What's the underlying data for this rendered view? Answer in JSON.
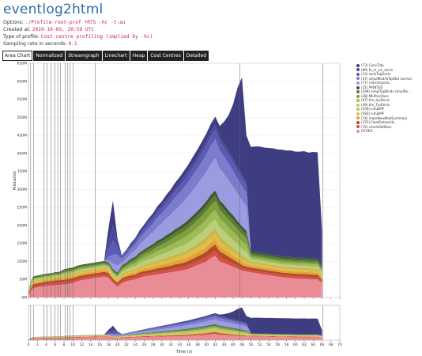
{
  "header": {
    "title": "eventlog2html"
  },
  "meta": {
    "options_label": "Options:",
    "options_value": "./Profile-root-prof +RTS -hc -t-au",
    "created_label": "Created at:",
    "created_value": "2019-10-03, 20:59 UTC",
    "profile_label": "Type of profile:",
    "profile_value": "Cost centre profiling (implied by -hc)",
    "sampling_label": "Sampling rate in seconds:",
    "sampling_value": "0.1"
  },
  "tabs": [
    {
      "label": "Area Chart",
      "active": true
    },
    {
      "label": "Normalized",
      "active": false
    },
    {
      "label": "Streamgraph",
      "active": false
    },
    {
      "label": "Linechart",
      "active": false
    },
    {
      "label": "Heap",
      "active": false
    },
    {
      "label": "Cost Centres",
      "active": false
    },
    {
      "label": "Detailed",
      "active": false
    }
  ],
  "legend": [
    {
      "label": "(73) ConvTidy",
      "color": "#3f3d82"
    },
    {
      "label": "(89) fz_m_src_decls",
      "color": "#4b4a9b"
    },
    {
      "label": "(13) zonkTopDecls",
      "color": "#5b5bb5"
    },
    {
      "label": "(37) simplMod/IsTopNot normal",
      "color": "#7b7ccc"
    },
    {
      "label": "(77) rnSrcImports",
      "color": "#9a9be0"
    },
    {
      "label": "(21) PRINTED",
      "color": "#3d5b2f"
    },
    {
      "label": "(249) simplTopBinds simplRe...",
      "color": "#5a7d36"
    },
    {
      "label": "(38) MkIfaceFace",
      "color": "#7fa03c"
    },
    {
      "label": "(67) tlm_tysDecls",
      "color": "#9dbb57"
    },
    {
      "label": "(49) tlm_TysDecls",
      "color": "#b9d078"
    },
    {
      "label": "(256) simplMF",
      "color": "#c9b64d"
    },
    {
      "label": "(583) simplMF",
      "color": "#e0bd4b"
    },
    {
      "label": "(74) makeNewModSummary",
      "color": "#e7a133"
    },
    {
      "label": "(372) FloatOutwards",
      "color": "#b04f27"
    },
    {
      "label": "(76) checkOldIface",
      "color": "#d94d4d"
    },
    {
      "label": "OTHER",
      "color": "#e88d96"
    }
  ],
  "chart_data": {
    "type": "area",
    "xlabel": "Time (s)",
    "ylabel": "Allocation",
    "ylim": [
      0,
      650
    ],
    "xlim": [
      0,
      70
    ],
    "y_ticks": [
      "0M",
      "50M",
      "100M",
      "150M",
      "200M",
      "250M",
      "300M",
      "350M",
      "400M",
      "450M",
      "500M",
      "550M",
      "600M",
      "650M"
    ],
    "x_ticks": [
      "0",
      "2",
      "4",
      "6",
      "8",
      "10",
      "12",
      "14",
      "16",
      "18",
      "20",
      "22",
      "24",
      "26",
      "28",
      "30",
      "32",
      "34",
      "36",
      "38",
      "40",
      "42",
      "44",
      "46",
      "48",
      "50",
      "52",
      "54",
      "56",
      "58",
      "60",
      "62",
      "64",
      "66",
      "68",
      "70"
    ],
    "x": [
      0,
      1,
      2,
      3,
      4,
      5,
      6,
      7,
      8,
      9,
      10,
      11,
      12,
      13,
      14,
      15,
      16,
      17,
      18,
      19,
      20,
      21,
      22,
      23,
      24,
      25,
      26,
      27,
      28,
      29,
      30,
      31,
      32,
      33,
      34,
      35,
      36,
      37,
      38,
      39,
      40,
      41,
      42,
      43,
      44,
      45,
      46,
      47,
      48,
      49,
      50,
      51,
      52,
      53,
      54,
      55,
      56,
      57,
      58,
      59,
      60,
      61,
      62,
      63,
      64,
      65,
      66
    ],
    "series": [
      {
        "name": "OTHER",
        "values": [
          10,
          25,
          28,
          30,
          32,
          33,
          34,
          35,
          36,
          38,
          40,
          45,
          48,
          50,
          52,
          54,
          56,
          58,
          55,
          40,
          30,
          40,
          45,
          48,
          50,
          55,
          58,
          60,
          62,
          64,
          66,
          68,
          70,
          72,
          74,
          76,
          80,
          85,
          90,
          95,
          100,
          110,
          115,
          100,
          95,
          90,
          85,
          80,
          75,
          72,
          70,
          68,
          66,
          64,
          62,
          60,
          58,
          56,
          55,
          54,
          53,
          52,
          52,
          51,
          50,
          50,
          40
        ]
      },
      {
        "name": "(76) checkOldIface",
        "values": [
          2,
          5,
          5,
          5,
          6,
          6,
          6,
          6,
          6,
          6,
          6,
          6,
          6,
          6,
          6,
          6,
          6,
          6,
          6,
          5,
          5,
          6,
          6,
          6,
          6,
          7,
          7,
          7,
          7,
          8,
          8,
          8,
          8,
          9,
          9,
          9,
          10,
          10,
          10,
          10,
          12,
          12,
          14,
          12,
          11,
          10,
          9,
          8,
          7,
          6,
          6,
          6,
          6,
          6,
          6,
          6,
          6,
          6,
          6,
          6,
          6,
          6,
          6,
          6,
          6,
          6,
          5
        ]
      },
      {
        "name": "(372) FloatOutwards",
        "values": [
          2,
          6,
          6,
          6,
          6,
          6,
          7,
          7,
          7,
          7,
          7,
          7,
          7,
          7,
          7,
          7,
          7,
          7,
          7,
          6,
          6,
          7,
          7,
          7,
          7,
          8,
          8,
          8,
          9,
          9,
          9,
          10,
          10,
          11,
          11,
          12,
          12,
          13,
          14,
          15,
          16,
          17,
          18,
          16,
          15,
          13,
          12,
          10,
          8,
          7,
          7,
          7,
          7,
          7,
          7,
          7,
          7,
          7,
          7,
          7,
          7,
          7,
          7,
          7,
          7,
          7,
          5
        ]
      },
      {
        "name": "(74) makeNewModSummary",
        "values": [
          2,
          4,
          4,
          4,
          4,
          4,
          5,
          5,
          5,
          5,
          5,
          5,
          5,
          5,
          5,
          5,
          5,
          5,
          5,
          4,
          4,
          5,
          5,
          6,
          6,
          6,
          7,
          7,
          7,
          8,
          8,
          8,
          9,
          9,
          10,
          10,
          11,
          11,
          12,
          12,
          13,
          14,
          14,
          13,
          12,
          11,
          10,
          9,
          8,
          7,
          6,
          6,
          6,
          6,
          6,
          6,
          6,
          6,
          6,
          6,
          6,
          6,
          6,
          6,
          6,
          6,
          5
        ]
      },
      {
        "name": "(583) simplMF",
        "values": [
          1,
          3,
          3,
          3,
          3,
          3,
          3,
          3,
          4,
          4,
          4,
          4,
          4,
          4,
          4,
          4,
          4,
          4,
          4,
          3,
          3,
          4,
          4,
          5,
          5,
          5,
          6,
          6,
          7,
          7,
          8,
          8,
          9,
          9,
          10,
          10,
          11,
          11,
          12,
          13,
          14,
          15,
          15,
          14,
          13,
          12,
          11,
          10,
          9,
          8,
          6,
          6,
          6,
          6,
          6,
          6,
          6,
          6,
          6,
          6,
          6,
          6,
          6,
          6,
          6,
          6,
          5
        ]
      },
      {
        "name": "(256) simplMF",
        "values": [
          1,
          2,
          2,
          2,
          2,
          2,
          2,
          2,
          2,
          3,
          3,
          3,
          3,
          3,
          3,
          3,
          3,
          3,
          3,
          3,
          3,
          4,
          4,
          4,
          5,
          5,
          5,
          6,
          6,
          7,
          7,
          8,
          8,
          9,
          9,
          10,
          10,
          11,
          12,
          13,
          14,
          14,
          15,
          14,
          13,
          12,
          11,
          10,
          9,
          8,
          5,
          5,
          5,
          5,
          5,
          5,
          5,
          5,
          5,
          5,
          5,
          5,
          5,
          5,
          5,
          5,
          4
        ]
      },
      {
        "name": "(49) tlm_TysDecls",
        "values": [
          1,
          3,
          3,
          3,
          3,
          3,
          3,
          3,
          4,
          4,
          4,
          4,
          4,
          4,
          4,
          4,
          4,
          4,
          4,
          4,
          4,
          5,
          6,
          7,
          8,
          9,
          10,
          11,
          12,
          13,
          14,
          15,
          16,
          17,
          18,
          19,
          20,
          21,
          22,
          23,
          24,
          25,
          26,
          25,
          24,
          23,
          22,
          21,
          20,
          19,
          6,
          6,
          6,
          6,
          6,
          6,
          6,
          6,
          6,
          6,
          6,
          6,
          6,
          6,
          6,
          6,
          5
        ]
      },
      {
        "name": "(67) tlm_tysDecls",
        "values": [
          1,
          3,
          3,
          3,
          3,
          3,
          3,
          3,
          4,
          4,
          4,
          4,
          4,
          4,
          4,
          4,
          4,
          4,
          4,
          4,
          4,
          5,
          6,
          7,
          8,
          9,
          10,
          11,
          12,
          13,
          14,
          15,
          16,
          17,
          18,
          19,
          20,
          21,
          22,
          23,
          24,
          25,
          26,
          25,
          24,
          23,
          22,
          21,
          20,
          19,
          6,
          6,
          6,
          6,
          6,
          6,
          6,
          6,
          6,
          6,
          6,
          6,
          6,
          6,
          6,
          6,
          5
        ]
      },
      {
        "name": "(38) MkIfaceFace",
        "values": [
          1,
          2,
          2,
          2,
          2,
          2,
          2,
          2,
          3,
          3,
          3,
          3,
          3,
          3,
          3,
          3,
          3,
          3,
          3,
          3,
          3,
          4,
          5,
          6,
          7,
          8,
          9,
          10,
          11,
          12,
          13,
          14,
          15,
          16,
          17,
          18,
          19,
          20,
          21,
          22,
          23,
          24,
          25,
          24,
          23,
          22,
          21,
          20,
          19,
          18,
          5,
          5,
          5,
          5,
          5,
          5,
          5,
          5,
          5,
          5,
          5,
          5,
          5,
          5,
          5,
          5,
          4
        ]
      },
      {
        "name": "(249) simplTopBinds simplRe...",
        "values": [
          1,
          3,
          3,
          3,
          3,
          3,
          3,
          3,
          4,
          4,
          4,
          4,
          4,
          4,
          4,
          4,
          4,
          4,
          4,
          4,
          4,
          5,
          5,
          6,
          6,
          7,
          7,
          8,
          8,
          9,
          9,
          10,
          10,
          11,
          11,
          12,
          12,
          13,
          13,
          14,
          14,
          15,
          15,
          14,
          14,
          13,
          13,
          12,
          12,
          11,
          6,
          6,
          6,
          6,
          6,
          6,
          6,
          6,
          6,
          6,
          6,
          6,
          6,
          6,
          6,
          6,
          5
        ]
      },
      {
        "name": "(21) PRINTED",
        "values": [
          1,
          2,
          2,
          2,
          2,
          2,
          2,
          2,
          3,
          3,
          3,
          3,
          3,
          3,
          3,
          3,
          3,
          3,
          3,
          3,
          3,
          4,
          4,
          5,
          5,
          6,
          6,
          7,
          7,
          8,
          8,
          9,
          9,
          10,
          10,
          11,
          11,
          12,
          12,
          13,
          13,
          14,
          14,
          13,
          13,
          12,
          12,
          11,
          11,
          10,
          5,
          5,
          5,
          5,
          5,
          5,
          5,
          5,
          5,
          5,
          5,
          5,
          5,
          5,
          5,
          5,
          4
        ]
      },
      {
        "name": "(77) rnSrcImports",
        "values": [
          0,
          0,
          0,
          0,
          0,
          0,
          0,
          0,
          0,
          0,
          0,
          0,
          0,
          0,
          0,
          0,
          0,
          0,
          5,
          15,
          20,
          8,
          10,
          14,
          18,
          22,
          26,
          30,
          34,
          38,
          42,
          46,
          50,
          54,
          58,
          62,
          66,
          70,
          74,
          78,
          82,
          86,
          90,
          88,
          86,
          84,
          80,
          76,
          72,
          68,
          0,
          0,
          0,
          0,
          0,
          0,
          0,
          0,
          0,
          0,
          0,
          0,
          0,
          0,
          0,
          0,
          0
        ]
      },
      {
        "name": "(37) simplMod/IsTopNot normal",
        "values": [
          0,
          0,
          0,
          0,
          0,
          0,
          0,
          0,
          0,
          0,
          0,
          0,
          0,
          0,
          0,
          0,
          0,
          0,
          10,
          25,
          30,
          10,
          12,
          14,
          16,
          18,
          20,
          22,
          24,
          26,
          28,
          30,
          32,
          34,
          36,
          38,
          40,
          42,
          44,
          46,
          48,
          50,
          52,
          50,
          48,
          46,
          44,
          42,
          40,
          38,
          0,
          0,
          0,
          0,
          0,
          0,
          0,
          0,
          0,
          0,
          0,
          0,
          0,
          0,
          0,
          0,
          0
        ]
      },
      {
        "name": "(13) zonkTopDecls",
        "values": [
          0,
          0,
          0,
          0,
          0,
          0,
          0,
          0,
          0,
          0,
          0,
          0,
          0,
          0,
          0,
          0,
          0,
          0,
          20,
          40,
          20,
          5,
          6,
          7,
          8,
          9,
          10,
          11,
          12,
          13,
          14,
          15,
          16,
          17,
          18,
          19,
          20,
          21,
          22,
          23,
          24,
          25,
          26,
          25,
          24,
          23,
          22,
          21,
          20,
          19,
          0,
          0,
          0,
          0,
          0,
          0,
          0,
          0,
          0,
          0,
          0,
          0,
          0,
          0,
          0,
          0,
          0
        ]
      },
      {
        "name": "(89) fz_m_src_decls",
        "values": [
          0,
          0,
          0,
          0,
          0,
          0,
          0,
          0,
          0,
          0,
          0,
          0,
          0,
          0,
          0,
          0,
          0,
          0,
          20,
          40,
          15,
          3,
          4,
          5,
          5,
          6,
          6,
          7,
          7,
          8,
          8,
          9,
          9,
          10,
          10,
          11,
          11,
          12,
          12,
          13,
          13,
          14,
          14,
          13,
          13,
          12,
          12,
          11,
          11,
          10,
          0,
          0,
          0,
          0,
          0,
          0,
          0,
          0,
          0,
          0,
          0,
          0,
          0,
          0,
          0,
          0,
          0
        ]
      },
      {
        "name": "(73) ConvTidy",
        "values": [
          0,
          0,
          0,
          0,
          0,
          0,
          0,
          0,
          0,
          0,
          0,
          0,
          0,
          0,
          0,
          0,
          0,
          0,
          40,
          70,
          10,
          2,
          3,
          4,
          5,
          6,
          7,
          8,
          9,
          10,
          11,
          12,
          13,
          14,
          15,
          16,
          17,
          18,
          19,
          20,
          21,
          22,
          23,
          30,
          60,
          100,
          150,
          220,
          270,
          130,
          290,
          293,
          295,
          294,
          295,
          296,
          295,
          296,
          295,
          296,
          294,
          295,
          296,
          293,
          296,
          295,
          100
        ]
      }
    ],
    "grid": true
  }
}
